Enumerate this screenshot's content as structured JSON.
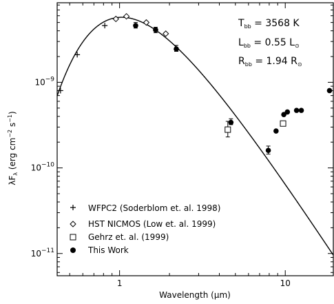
{
  "chart_data": {
    "type": "scatter",
    "title": "",
    "xlabel_main": "Wavelength (",
    "xlabel_unit": "μm",
    "xlabel_close": ")",
    "ylabel_main": "λF",
    "ylabel_sub": "λ",
    "ylabel_units": " (erg cm",
    "ylabel_exp1": "−2",
    "ylabel_s": " s",
    "ylabel_exp2": "−1",
    "ylabel_close": ")",
    "x_scale": "log",
    "y_scale": "log",
    "xlim": [
      0.42,
      19.5
    ],
    "ylim": [
      5.5e-12,
      8.5e-09
    ],
    "x_tick_labels": [
      {
        "value": 1,
        "label": "1"
      },
      {
        "value": 10,
        "label": "10"
      }
    ],
    "y_tick_labels": [
      {
        "value": 1e-09,
        "base": "10",
        "exp": "−9"
      },
      {
        "value": 1e-10,
        "base": "10",
        "exp": "−10"
      },
      {
        "value": 1e-11,
        "base": "10",
        "exp": "−11"
      }
    ],
    "annotations": [
      {
        "main": "T",
        "sub": "bb",
        "rest": " = 3568 K"
      },
      {
        "main": "L",
        "sub": "bb",
        "rest": " = 0.55 L",
        "tail_sub": "⊙"
      },
      {
        "main": "R",
        "sub": "bb",
        "rest": " = 1.94 R",
        "tail_sub": "⊙"
      }
    ],
    "series": [
      {
        "name": "WFPC2 (Soderblom et. al. 1998)",
        "marker": "plus",
        "points": [
          {
            "x": 0.44,
            "y": 8e-10
          },
          {
            "x": 0.555,
            "y": 2.1e-09
          },
          {
            "x": 0.814,
            "y": 4.6e-09
          }
        ]
      },
      {
        "name": "HST NICMOS (Low et. al. 1999)",
        "marker": "diamond",
        "points": [
          {
            "x": 0.95,
            "y": 5.5e-09
          },
          {
            "x": 1.1,
            "y": 5.9e-09
          },
          {
            "x": 1.45,
            "y": 5e-09
          },
          {
            "x": 1.9,
            "y": 3.7e-09
          }
        ]
      },
      {
        "name": "Gehrz et. al. (1999)",
        "marker": "square",
        "points": [
          {
            "x": 4.5,
            "y": 2.8e-10,
            "yerr_low": 2.3e-10,
            "yerr_high": 3.5e-10
          },
          {
            "x": 9.7,
            "y": 3.3e-10
          }
        ]
      },
      {
        "name": "This Work",
        "marker": "circle",
        "points": [
          {
            "x": 1.25,
            "y": 4.6e-09,
            "yerr_low": 4.3e-09,
            "yerr_high": 5e-09
          },
          {
            "x": 1.65,
            "y": 4.1e-09,
            "yerr_low": 3.8e-09,
            "yerr_high": 4.4e-09
          },
          {
            "x": 2.2,
            "y": 2.45e-09,
            "yerr_low": 2.3e-09,
            "yerr_high": 2.7e-09
          },
          {
            "x": 4.7,
            "y": 3.4e-10,
            "yerr_low": 3.2e-10,
            "yerr_high": 3.75e-10
          },
          {
            "x": 7.9,
            "y": 1.6e-10,
            "yerr_low": 1.45e-10,
            "yerr_high": 1.8e-10
          },
          {
            "x": 8.8,
            "y": 2.7e-10
          },
          {
            "x": 9.8,
            "y": 4.2e-10
          },
          {
            "x": 10.3,
            "y": 4.5e-10
          },
          {
            "x": 11.7,
            "y": 4.7e-10
          },
          {
            "x": 12.5,
            "y": 4.7e-10
          },
          {
            "x": 18.5,
            "y": 8e-10
          }
        ]
      }
    ],
    "model_curve": {
      "type": "blackbody",
      "temperature_K": 3568,
      "peak_value": 5.75e-09
    }
  }
}
